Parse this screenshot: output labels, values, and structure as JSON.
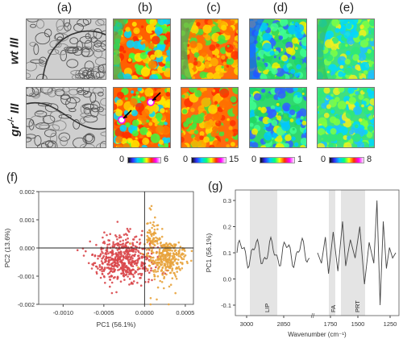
{
  "figure": {
    "columns": [
      "(a)",
      "(b)",
      "(c)",
      "(d)",
      "(e)"
    ],
    "rows": [
      {
        "main": "wt",
        "suffix": " III"
      },
      {
        "main": "gr",
        "sup": "-/-",
        "suffix": " III"
      }
    ],
    "colorbars": [
      {
        "min": "0",
        "max": "6"
      },
      {
        "min": "0",
        "max": "15"
      },
      {
        "min": "0",
        "max": "1"
      },
      {
        "min": "0",
        "max": "8"
      }
    ],
    "panel_f_label": "(f)",
    "panel_g_label": "(g)"
  },
  "chart_data": [
    {
      "type": "scatter",
      "xlabel": "PC1 (56.1%)",
      "ylabel": "PC2 (13.6%)",
      "xlim": [
        -0.0013,
        0.0006
      ],
      "ylim": [
        -0.002,
        0.002
      ],
      "xticks": [
        "-0.0010",
        "-0.0005",
        "0.0000",
        "0.0005"
      ],
      "yticks": [
        "-0.002",
        "-0.001",
        "0.000",
        "0.001",
        "0.002"
      ],
      "colors": {
        "red_cluster": "#d9474b",
        "orange_cluster": "#e8a33c"
      },
      "series": [
        {
          "center": [
            -0.00025,
            -0.0004
          ],
          "spread": [
            0.00018,
            0.0004
          ],
          "count": 520
        },
        {
          "center": [
            0.00025,
            -0.0003
          ],
          "spread": [
            0.00012,
            0.00035
          ],
          "count": 380
        }
      ]
    },
    {
      "type": "line",
      "xlabel": "Wavenumber (cm⁻¹)",
      "ylabel": "PC1 (56.1%)",
      "yticks": [
        "-0.1",
        "0.0",
        "0.1",
        "0.2",
        "0.3"
      ],
      "ylim": [
        -0.14,
        0.34
      ],
      "xticks": [
        "3000",
        "2850",
        "1750",
        "1500",
        "1250",
        "1000"
      ],
      "regions": [
        "LIP",
        "FA",
        "PRT",
        "CRT"
      ]
    }
  ]
}
